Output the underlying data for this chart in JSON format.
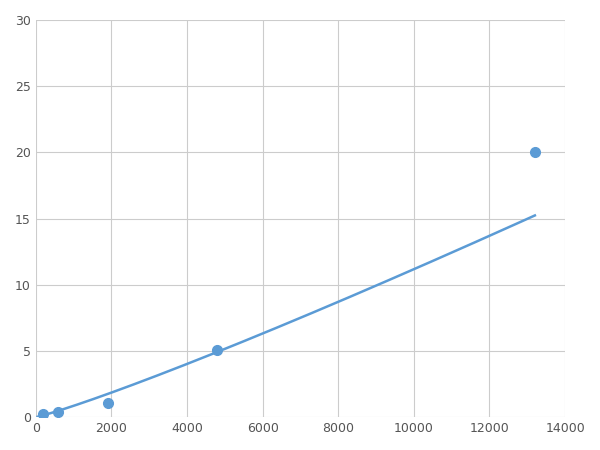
{
  "x_points": [
    200,
    600,
    1900,
    4800,
    13200
  ],
  "y_points": [
    0.2,
    0.4,
    1.1,
    5.1,
    20.0
  ],
  "line_color": "#5B9BD5",
  "marker_color": "#5B9BD5",
  "marker_size": 7,
  "line_width": 1.8,
  "xlim": [
    0,
    14000
  ],
  "ylim": [
    0,
    30
  ],
  "xticks": [
    0,
    2000,
    4000,
    6000,
    8000,
    10000,
    12000,
    14000
  ],
  "yticks": [
    0,
    5,
    10,
    15,
    20,
    25,
    30
  ],
  "grid_color": "#CCCCCC",
  "background_color": "#FFFFFF",
  "figsize": [
    6.0,
    4.5
  ],
  "dpi": 100
}
